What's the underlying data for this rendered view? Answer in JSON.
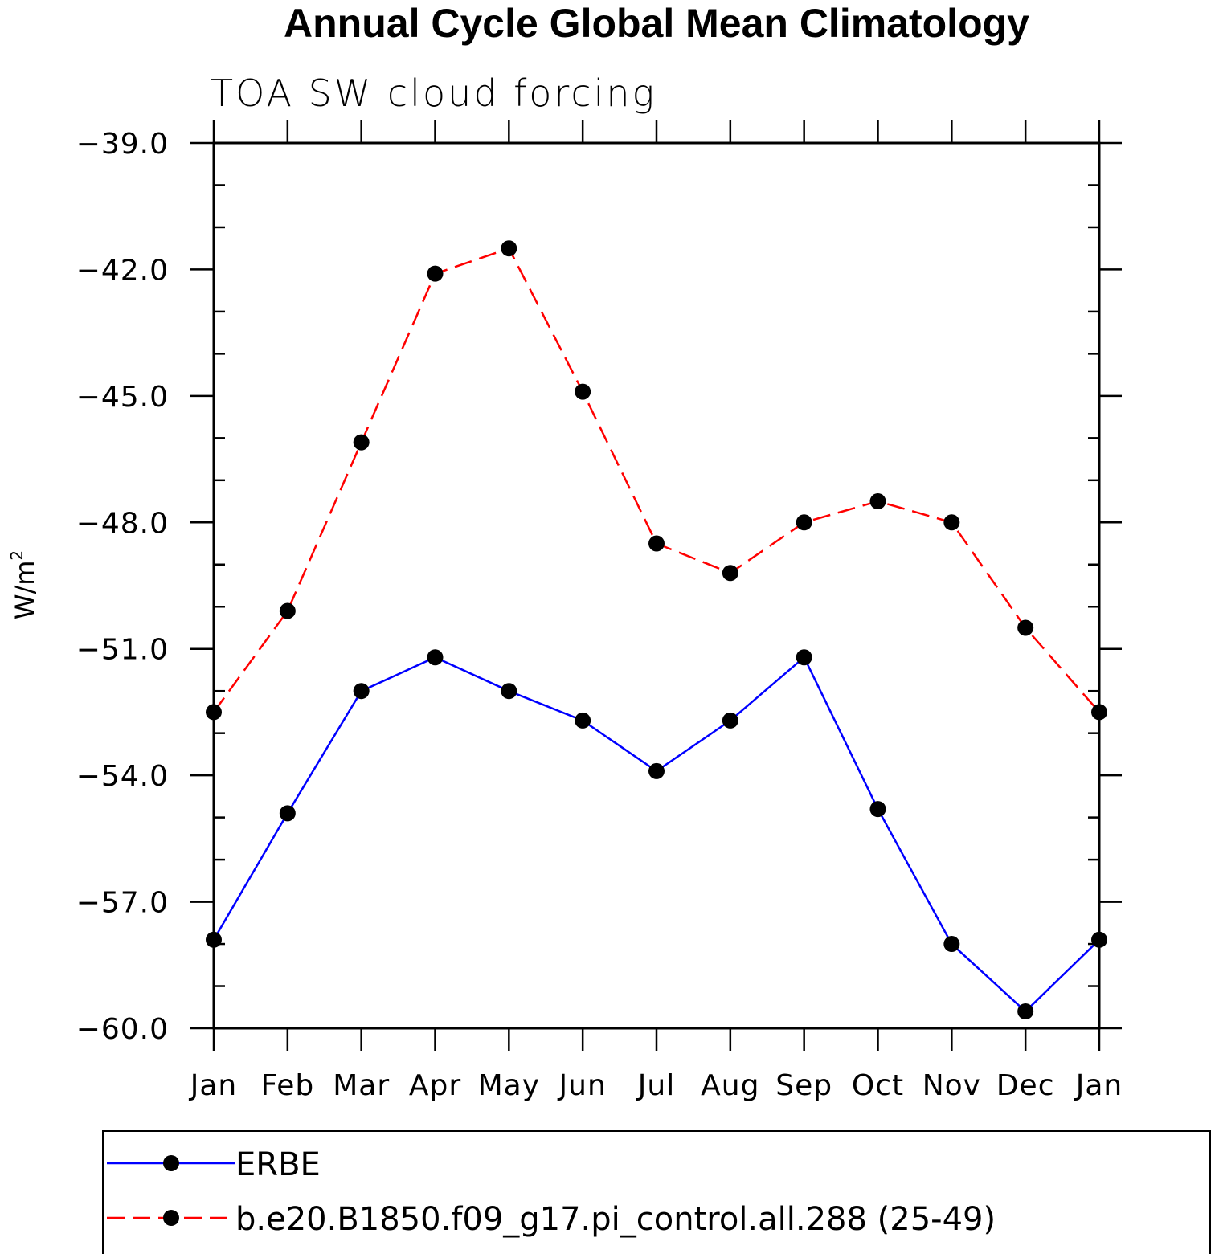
{
  "chart_data": {
    "type": "line",
    "title": "Annual Cycle Global Mean Climatology",
    "subtitle": "TOA SW cloud forcing",
    "xlabel": "",
    "ylabel": "W/m",
    "ylabel_superscript": "2",
    "categories": [
      "Jan",
      "Feb",
      "Mar",
      "Apr",
      "May",
      "Jun",
      "Jul",
      "Aug",
      "Sep",
      "Oct",
      "Nov",
      "Dec",
      "Jan"
    ],
    "ylim": [
      -60.0,
      -39.0
    ],
    "yticks": [
      "-39.0",
      "-42.0",
      "-45.0",
      "-48.0",
      "-51.0",
      "-54.0",
      "-57.0",
      "-60.0"
    ],
    "grid": false,
    "legend_position": "bottom",
    "series": [
      {
        "name": "ERBE",
        "color": "#0000ff",
        "dash": "solid",
        "marker": "filled-circle",
        "values": [
          -57.9,
          -54.9,
          -52.0,
          -51.2,
          -52.0,
          -52.7,
          -53.9,
          -52.7,
          -51.2,
          -54.8,
          -58.0,
          -59.6,
          -57.9
        ]
      },
      {
        "name": "b.e20.B1850.f09_g17.pi_control.all.288 (25-49)",
        "color": "#ff0000",
        "dash": "dashed",
        "marker": "filled-circle",
        "values": [
          -52.5,
          -50.1,
          -46.1,
          -42.1,
          -41.5,
          -44.9,
          -48.5,
          -49.2,
          -48.0,
          -47.5,
          -48.0,
          -50.5,
          -52.5
        ]
      }
    ]
  }
}
